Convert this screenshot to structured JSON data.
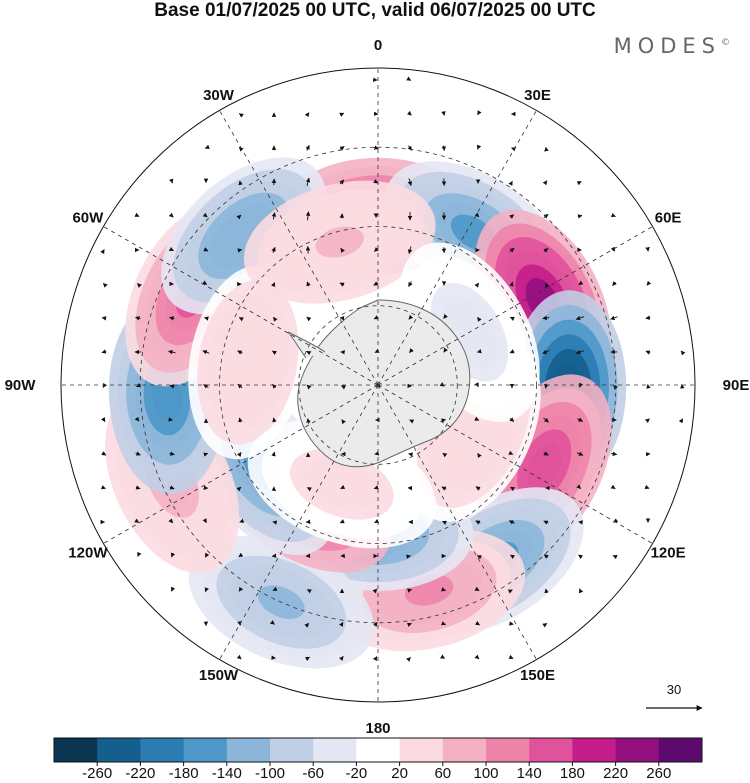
{
  "title": "Base 01/07/2025 00 UTC, valid 06/07/2025 00 UTC",
  "brand": "MODES",
  "brand_mark": "©",
  "reference_vector": {
    "label": "30"
  },
  "longitude_labels": [
    "0",
    "30E",
    "60E",
    "90E",
    "120E",
    "150E",
    "180",
    "150W",
    "120W",
    "90W",
    "60W",
    "30W"
  ],
  "colorbar": {
    "levels": [
      -260,
      -220,
      -180,
      -140,
      -100,
      -60,
      -20,
      20,
      60,
      100,
      140,
      180,
      220,
      260
    ],
    "tick_labels": [
      "-260",
      "-220",
      "-180",
      "-140",
      "-100",
      "-60",
      "-20",
      "20",
      "60",
      "100",
      "140",
      "180",
      "220",
      "260"
    ],
    "colors": [
      "#0b3550",
      "#155f8e",
      "#2a7cb3",
      "#4d98c8",
      "#8cb6d9",
      "#c1cfe6",
      "#e4e7f3",
      "#ffffff",
      "#fbdbe1",
      "#f4b1c4",
      "#ee84aa",
      "#e0529b",
      "#c41c8b",
      "#93107e",
      "#5c0a6d"
    ]
  },
  "anomalies": [
    {
      "lon": 0,
      "lat": -58,
      "value": 170
    },
    {
      "lon": 32,
      "lat": -56,
      "value": -150
    },
    {
      "lon": 63,
      "lat": -55,
      "value": 230
    },
    {
      "lon": 91,
      "lat": -54,
      "value": -260
    },
    {
      "lon": 116,
      "lat": -55,
      "value": 175
    },
    {
      "lon": 146,
      "lat": -50,
      "value": -150
    },
    {
      "lon": 166,
      "lat": -50,
      "value": 110
    },
    {
      "lon": 181,
      "lat": -62,
      "value": -160
    },
    {
      "lon": 204,
      "lat": -45,
      "value": -110
    },
    {
      "lon": 213,
      "lat": -64,
      "value": 180
    },
    {
      "lon": 234,
      "lat": -63,
      "value": -150
    },
    {
      "lon": 245,
      "lat": -47,
      "value": 70
    },
    {
      "lon": 267,
      "lat": -50,
      "value": -170
    },
    {
      "lon": 296,
      "lat": -51,
      "value": 140
    },
    {
      "lon": 318,
      "lat": -52,
      "value": -140
    },
    {
      "lon": 280,
      "lat": -65,
      "value": 40
    },
    {
      "lon": 345,
      "lat": -62,
      "value": 60
    },
    {
      "lon": 115,
      "lat": -70,
      "value": 40
    },
    {
      "lon": 200,
      "lat": -70,
      "value": 30
    },
    {
      "lon": 60,
      "lat": -70,
      "value": -30
    }
  ]
}
